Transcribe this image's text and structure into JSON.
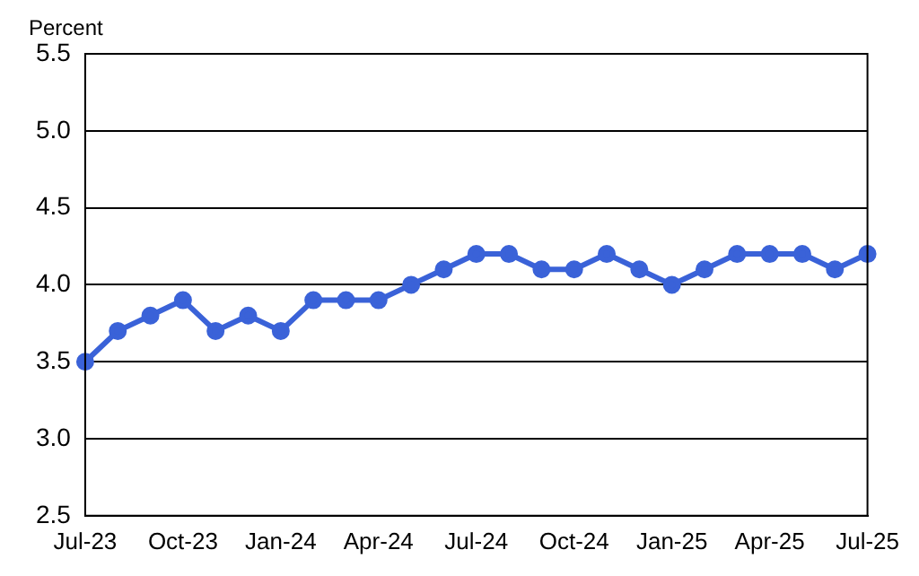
{
  "chart_data": {
    "type": "line",
    "ylabel": "Percent",
    "categories": [
      "Jul-23",
      null,
      null,
      "Oct-23",
      null,
      null,
      "Jan-24",
      null,
      null,
      "Apr-24",
      null,
      null,
      "Jul-24",
      null,
      null,
      "Oct-24",
      null,
      null,
      "Jan-25",
      null,
      null,
      "Apr-25",
      null,
      null,
      "Jul-25"
    ],
    "series": [
      {
        "color": "#3a62d8",
        "values": [
          3.5,
          3.7,
          3.8,
          3.9,
          3.7,
          3.8,
          3.7,
          3.9,
          3.9,
          3.9,
          4.0,
          4.1,
          4.2,
          4.2,
          4.1,
          4.1,
          4.2,
          4.1,
          4.0,
          4.1,
          4.2,
          4.2,
          4.2,
          4.1,
          4.2
        ]
      }
    ],
    "ylim": [
      2.5,
      5.5
    ],
    "yticks": [
      {
        "value": 2.5,
        "label": "2.5"
      },
      {
        "value": 3,
        "label": "3.0"
      },
      {
        "value": 3.5,
        "label": "3.5"
      },
      {
        "value": 4,
        "label": "4.0"
      },
      {
        "value": 4.5,
        "label": "4.5"
      },
      {
        "value": 5,
        "label": "5.0"
      },
      {
        "value": 5.5,
        "label": "5.5"
      }
    ],
    "grid": "y",
    "marker": "circle",
    "line_style": "solid",
    "legend": false
  }
}
